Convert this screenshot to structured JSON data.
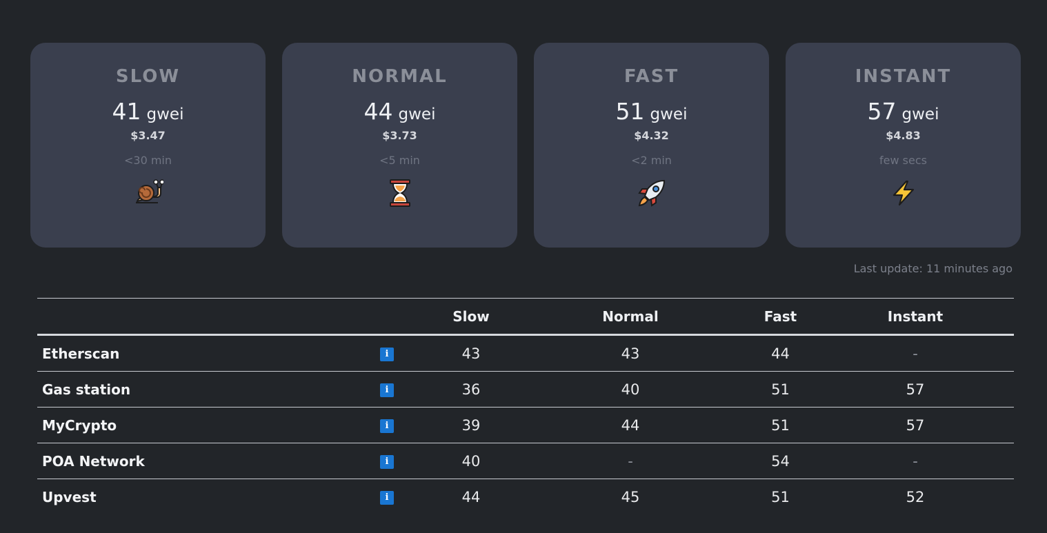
{
  "cards": [
    {
      "title": "SLOW",
      "gwei": "41",
      "unit": "gwei",
      "usd": "$3.47",
      "time": "<30 min",
      "icon": "snail-icon"
    },
    {
      "title": "NORMAL",
      "gwei": "44",
      "unit": "gwei",
      "usd": "$3.73",
      "time": "<5 min",
      "icon": "hourglass-icon"
    },
    {
      "title": "FAST",
      "gwei": "51",
      "unit": "gwei",
      "usd": "$4.32",
      "time": "<2 min",
      "icon": "rocket-icon"
    },
    {
      "title": "INSTANT",
      "gwei": "57",
      "unit": "gwei",
      "usd": "$4.83",
      "time": "few secs",
      "icon": "lightning-icon"
    }
  ],
  "last_update": "Last update: 11 minutes ago",
  "table": {
    "headers": [
      "",
      "",
      "Slow",
      "Normal",
      "Fast",
      "Instant"
    ],
    "info_icon_glyph": "i",
    "rows": [
      {
        "name": "Etherscan",
        "slow": "43",
        "normal": "43",
        "fast": "44",
        "instant": "-"
      },
      {
        "name": "Gas station",
        "slow": "36",
        "normal": "40",
        "fast": "51",
        "instant": "57"
      },
      {
        "name": "MyCrypto",
        "slow": "39",
        "normal": "44",
        "fast": "51",
        "instant": "57"
      },
      {
        "name": "POA Network",
        "slow": "40",
        "normal": "-",
        "fast": "54",
        "instant": "-"
      },
      {
        "name": "Upvest",
        "slow": "44",
        "normal": "45",
        "fast": "51",
        "instant": "52"
      }
    ]
  },
  "colors": {
    "background": "#222529",
    "card": "#3a3f4e",
    "info_icon": "#1976d2"
  }
}
